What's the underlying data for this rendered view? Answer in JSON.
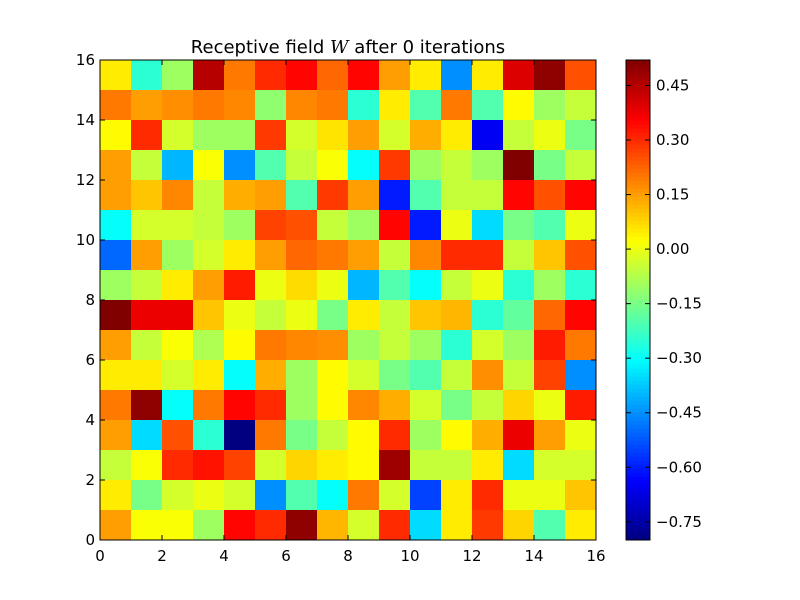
{
  "chart_data": {
    "type": "heatmap",
    "title_prefix": "Receptive field ",
    "title_var": "W",
    "title_suffix": " after 0 iterations",
    "xlabel": "",
    "ylabel": "",
    "xlim": [
      0,
      16
    ],
    "ylim": [
      0,
      16
    ],
    "x_ticks": [
      0,
      2,
      4,
      6,
      8,
      10,
      12,
      14,
      16
    ],
    "y_ticks": [
      0,
      2,
      4,
      6,
      8,
      10,
      12,
      14,
      16
    ],
    "colormap": "jet",
    "color_range": [
      -0.8,
      0.52
    ],
    "colorbar_ticks": [
      -0.75,
      -0.6,
      -0.45,
      -0.3,
      -0.15,
      0.0,
      0.15,
      0.3,
      0.45
    ],
    "colorbar_tick_labels": [
      "−0.75",
      "−0.60",
      "−0.45",
      "−0.30",
      "−0.15",
      "0.00",
      "0.15",
      "0.30",
      "0.45"
    ],
    "grid": false,
    "rows_top_to_bottom": [
      [
        0.05,
        -0.25,
        -0.1,
        0.45,
        0.2,
        0.3,
        0.35,
        0.22,
        0.35,
        0.15,
        0.05,
        -0.45,
        0.05,
        0.4,
        0.5,
        0.25
      ],
      [
        0.2,
        0.15,
        0.17,
        0.2,
        0.18,
        -0.12,
        0.18,
        0.2,
        -0.25,
        0.05,
        -0.2,
        0.2,
        -0.2,
        0.03,
        -0.1,
        -0.05
      ],
      [
        0.03,
        0.3,
        -0.03,
        -0.1,
        -0.1,
        0.28,
        -0.03,
        0.06,
        0.15,
        -0.03,
        0.13,
        0.05,
        -0.65,
        -0.05,
        0.0,
        -0.15
      ],
      [
        0.15,
        -0.05,
        -0.4,
        0.02,
        -0.45,
        -0.2,
        -0.05,
        0.02,
        -0.3,
        0.28,
        -0.1,
        -0.05,
        -0.1,
        0.52,
        -0.15,
        -0.05
      ],
      [
        0.15,
        0.1,
        0.18,
        -0.05,
        0.13,
        0.15,
        -0.2,
        0.28,
        0.15,
        -0.6,
        -0.2,
        -0.05,
        -0.05,
        0.35,
        0.25,
        0.35
      ],
      [
        -0.3,
        -0.03,
        -0.03,
        -0.05,
        -0.1,
        0.27,
        0.25,
        -0.05,
        -0.1,
        0.35,
        -0.6,
        0.0,
        -0.35,
        -0.15,
        -0.2,
        0.0
      ],
      [
        -0.5,
        0.15,
        -0.1,
        -0.03,
        0.05,
        0.15,
        0.22,
        0.2,
        0.15,
        -0.05,
        0.18,
        0.3,
        0.3,
        -0.05,
        0.1,
        0.25
      ],
      [
        -0.1,
        -0.05,
        0.05,
        0.15,
        0.32,
        0.0,
        0.07,
        0.0,
        -0.4,
        -0.2,
        -0.3,
        -0.05,
        0.0,
        -0.25,
        -0.1,
        -0.25
      ],
      [
        0.52,
        0.38,
        0.38,
        0.1,
        0.0,
        -0.05,
        0.0,
        -0.15,
        0.05,
        -0.05,
        0.1,
        0.12,
        -0.25,
        -0.18,
        0.22,
        0.35
      ],
      [
        0.15,
        -0.05,
        0.02,
        -0.08,
        0.03,
        0.2,
        0.18,
        0.17,
        -0.1,
        -0.05,
        -0.1,
        -0.25,
        -0.03,
        -0.1,
        0.32,
        0.2
      ],
      [
        0.05,
        0.05,
        -0.03,
        0.05,
        -0.3,
        0.13,
        -0.1,
        0.03,
        -0.03,
        -0.15,
        -0.2,
        -0.05,
        0.17,
        -0.05,
        0.27,
        -0.45
      ],
      [
        0.2,
        0.5,
        -0.3,
        0.2,
        0.35,
        0.3,
        -0.1,
        0.03,
        0.18,
        0.13,
        -0.03,
        -0.15,
        -0.05,
        0.08,
        0.0,
        0.32
      ],
      [
        0.15,
        -0.35,
        0.25,
        -0.25,
        -0.8,
        0.2,
        -0.15,
        -0.05,
        0.03,
        0.3,
        -0.1,
        0.03,
        0.13,
        0.38,
        0.15,
        0.0
      ],
      [
        -0.05,
        0.02,
        0.3,
        0.33,
        0.27,
        -0.03,
        0.08,
        0.05,
        0.03,
        0.48,
        -0.05,
        -0.05,
        0.05,
        -0.35,
        -0.03,
        -0.03
      ],
      [
        0.05,
        -0.15,
        -0.03,
        0.0,
        -0.03,
        -0.45,
        -0.2,
        -0.3,
        0.2,
        -0.03,
        -0.55,
        0.05,
        0.3,
        0.0,
        0.0,
        0.1
      ],
      [
        0.15,
        0.02,
        0.02,
        -0.1,
        0.35,
        0.3,
        0.5,
        0.12,
        -0.03,
        0.3,
        -0.35,
        0.05,
        0.28,
        0.08,
        -0.2,
        0.05
      ]
    ]
  }
}
